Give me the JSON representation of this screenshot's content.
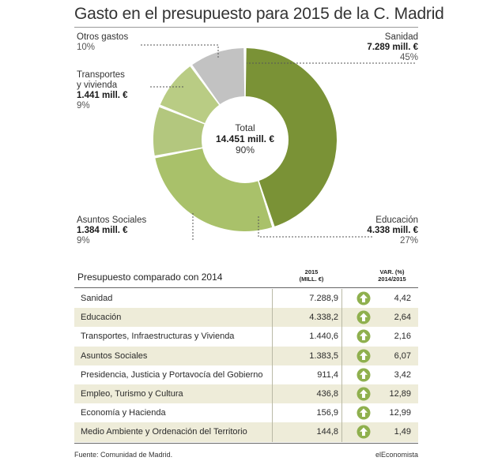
{
  "title": "Gasto en el presupuesto para 2015 de la C. Madrid",
  "colors": {
    "sanidad": "#7a9236",
    "educacion": "#a9c16a",
    "asuntos": "#b3c77e",
    "transportes": "#b9cc84",
    "otros": "#c2c2c2",
    "alt_row": "#eeecd9",
    "arrow": "#8fb04e"
  },
  "chart_data": [
    {
      "type": "pie",
      "title": "Gasto en el presupuesto para 2015 de la C. Madrid",
      "slices": [
        {
          "label": "Sanidad",
          "amount": "7.289 mill. €",
          "percent_label": "45%",
          "value": 45
        },
        {
          "label": "Educación",
          "amount": "4.338 mill. €",
          "percent_label": "27%",
          "value": 27
        },
        {
          "label": "Asuntos Sociales",
          "amount": "1.384 mill. €",
          "percent_label": "9%",
          "value": 9
        },
        {
          "label": "Transportes y vivienda",
          "label_lines": [
            "Transportes",
            "y vivienda"
          ],
          "amount": "1.441 mill. €",
          "percent_label": "9%",
          "value": 9
        },
        {
          "label": "Otros gastos",
          "amount": "",
          "percent_label": "10%",
          "value": 10
        }
      ],
      "center": {
        "label": "Total",
        "amount": "14.451 mill. €",
        "percent_label": "90%"
      },
      "legend": "none"
    },
    {
      "type": "table",
      "title": "Presupuesto comparado con 2014",
      "columns": [
        {
          "header_lines": [
            "2015",
            "(MILL. €)"
          ]
        },
        {
          "header_lines": [
            "VAR. (%)",
            "2014/2015"
          ]
        }
      ],
      "rows": [
        {
          "name": "Sanidad",
          "value": "7.288,9",
          "var": "4,42"
        },
        {
          "name": "Educación",
          "value": "4.338,2",
          "var": "2,64"
        },
        {
          "name": "Transportes, Infraestructuras y Vivienda",
          "value": "1.440,6",
          "var": "2,16"
        },
        {
          "name": "Asuntos Sociales",
          "value": "1.383,5",
          "var": "6,07"
        },
        {
          "name": "Presidencia, Justicia y Portavocía del Gobierno",
          "value": "911,4",
          "var": "3,42"
        },
        {
          "name": "Empleo, Turismo y Cultura",
          "value": "436,8",
          "var": "12,89"
        },
        {
          "name": "Economía y Hacienda",
          "value": "156,9",
          "var": "12,99"
        },
        {
          "name": "Medio Ambiente y Ordenación del Territorio",
          "value": "144,8",
          "var": "1,49"
        }
      ],
      "arrow_icon": "up-arrow-icon"
    }
  ],
  "footer": {
    "source": "Fuente: Comunidad de Madrid.",
    "brand": "elEconomista"
  }
}
